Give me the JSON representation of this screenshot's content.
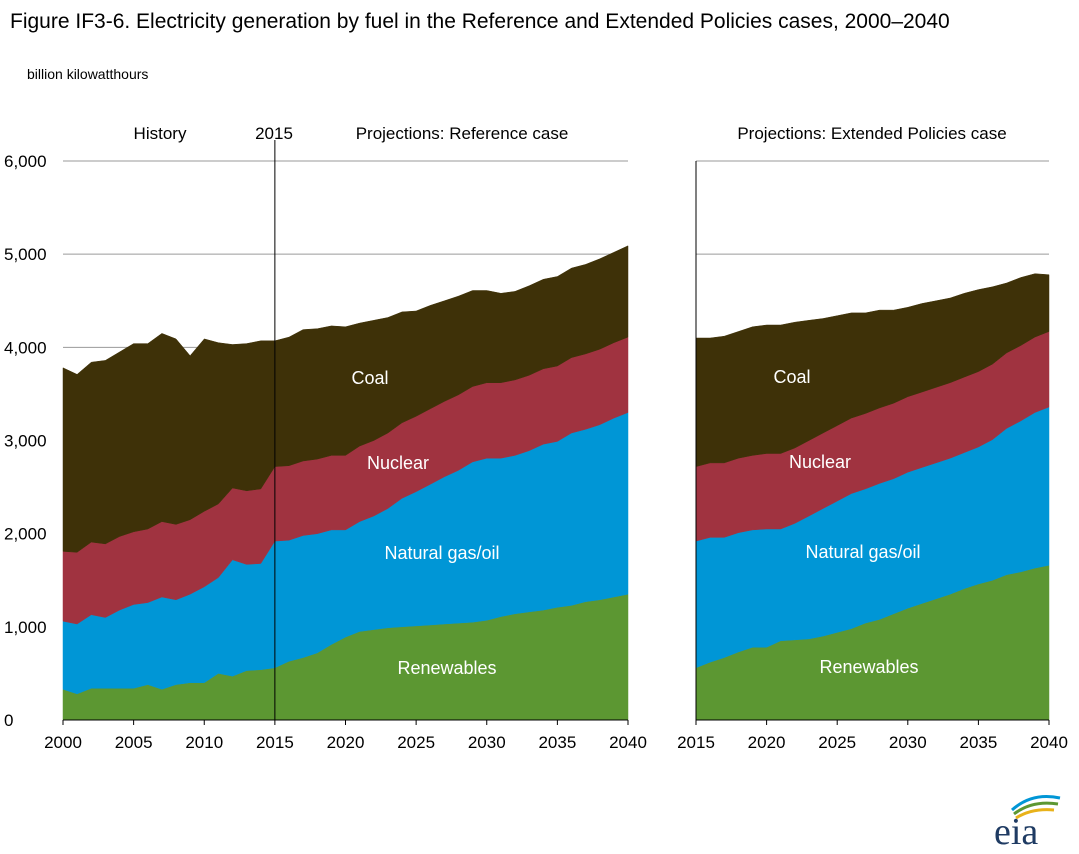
{
  "title": "Figure IF3-6. Electricity generation by fuel in the Reference and Extended Policies cases, 2000–2040",
  "unit": "billion kilowatthours",
  "logo_text": "eia",
  "colors": {
    "Renewables": "#5c9732",
    "Natural gas/oil": "#0096d6",
    "Nuclear": "#a03340",
    "Coal": "#3e3108"
  },
  "chart_data": [
    {
      "type": "area",
      "stacked": true,
      "panel": "left",
      "header_labels": [
        "History",
        "2015",
        "Projections: Reference case"
      ],
      "ylim": [
        0,
        6000
      ],
      "yticks": [
        0,
        1000,
        2000,
        3000,
        4000,
        5000,
        6000
      ],
      "ytick_labels": [
        "0",
        "1,000",
        "2,000",
        "3,000",
        "4,000",
        "5,000",
        "6,000"
      ],
      "xlim": [
        2000,
        2040
      ],
      "xticks": [
        2000,
        2005,
        2010,
        2015,
        2020,
        2025,
        2030,
        2035,
        2040
      ],
      "divider_year": 2015,
      "grid": true,
      "x": [
        2000,
        2001,
        2002,
        2003,
        2004,
        2005,
        2006,
        2007,
        2008,
        2009,
        2010,
        2011,
        2012,
        2013,
        2014,
        2015,
        2016,
        2017,
        2018,
        2019,
        2020,
        2021,
        2022,
        2023,
        2024,
        2025,
        2026,
        2027,
        2028,
        2029,
        2030,
        2031,
        2032,
        2033,
        2034,
        2035,
        2036,
        2037,
        2038,
        2039,
        2040
      ],
      "series": [
        {
          "name": "Renewables",
          "values": [
            330,
            280,
            340,
            340,
            340,
            340,
            380,
            330,
            380,
            400,
            400,
            500,
            470,
            530,
            540,
            560,
            630,
            670,
            720,
            810,
            890,
            950,
            970,
            990,
            1000,
            1010,
            1020,
            1030,
            1040,
            1050,
            1070,
            1110,
            1140,
            1160,
            1180,
            1210,
            1230,
            1270,
            1290,
            1320,
            1350
          ]
        },
        {
          "name": "Natural gas/oil",
          "values": [
            730,
            750,
            790,
            760,
            840,
            900,
            880,
            990,
            910,
            950,
            1030,
            1030,
            1250,
            1140,
            1140,
            1360,
            1300,
            1310,
            1280,
            1230,
            1150,
            1180,
            1220,
            1280,
            1380,
            1440,
            1510,
            1580,
            1640,
            1720,
            1740,
            1700,
            1700,
            1730,
            1780,
            1780,
            1850,
            1850,
            1880,
            1920,
            1950
          ]
        },
        {
          "name": "Nuclear",
          "values": [
            750,
            770,
            780,
            790,
            790,
            780,
            790,
            810,
            810,
            800,
            810,
            790,
            770,
            790,
            800,
            800,
            800,
            800,
            800,
            800,
            800,
            810,
            810,
            810,
            810,
            810,
            810,
            810,
            810,
            810,
            810,
            810,
            810,
            810,
            810,
            810,
            810,
            810,
            810,
            810,
            810
          ]
        },
        {
          "name": "Coal",
          "values": [
            1970,
            1910,
            1930,
            1970,
            1980,
            2020,
            1990,
            2020,
            1990,
            1760,
            1850,
            1730,
            1540,
            1580,
            1590,
            1350,
            1380,
            1410,
            1400,
            1390,
            1380,
            1320,
            1290,
            1240,
            1190,
            1130,
            1110,
            1080,
            1060,
            1030,
            990,
            960,
            950,
            960,
            960,
            960,
            960,
            960,
            970,
            970,
            980
          ]
        }
      ],
      "annotations": [
        "Coal",
        "Nuclear",
        "Natural gas/oil",
        "Renewables"
      ]
    },
    {
      "type": "area",
      "stacked": true,
      "panel": "right",
      "header_labels": [
        "Projections: Extended Policies case"
      ],
      "ylim": [
        0,
        6000
      ],
      "xlim": [
        2015,
        2040
      ],
      "xticks": [
        2015,
        2020,
        2025,
        2030,
        2035,
        2040
      ],
      "grid": true,
      "x": [
        2015,
        2016,
        2017,
        2018,
        2019,
        2020,
        2021,
        2022,
        2023,
        2024,
        2025,
        2026,
        2027,
        2028,
        2029,
        2030,
        2031,
        2032,
        2033,
        2034,
        2035,
        2036,
        2037,
        2038,
        2039,
        2040
      ],
      "series": [
        {
          "name": "Renewables",
          "values": [
            560,
            620,
            670,
            730,
            780,
            780,
            850,
            860,
            870,
            900,
            940,
            980,
            1040,
            1080,
            1140,
            1200,
            1250,
            1300,
            1350,
            1410,
            1460,
            1500,
            1560,
            1590,
            1630,
            1660
          ]
        },
        {
          "name": "Natural gas/oil",
          "values": [
            1360,
            1340,
            1290,
            1280,
            1260,
            1270,
            1200,
            1250,
            1320,
            1370,
            1410,
            1450,
            1440,
            1460,
            1450,
            1460,
            1460,
            1460,
            1460,
            1460,
            1470,
            1510,
            1570,
            1620,
            1670,
            1700
          ]
        },
        {
          "name": "Nuclear",
          "values": [
            800,
            800,
            800,
            800,
            800,
            810,
            810,
            810,
            810,
            810,
            810,
            810,
            810,
            810,
            810,
            810,
            810,
            810,
            810,
            810,
            810,
            810,
            810,
            810,
            810,
            810
          ]
        },
        {
          "name": "Coal",
          "values": [
            1380,
            1340,
            1360,
            1360,
            1380,
            1380,
            1380,
            1350,
            1290,
            1230,
            1180,
            1130,
            1080,
            1050,
            1000,
            960,
            950,
            930,
            910,
            900,
            880,
            830,
            750,
            730,
            680,
            610
          ]
        }
      ],
      "annotations": [
        "Coal",
        "Nuclear",
        "Natural gas/oil",
        "Renewables"
      ]
    }
  ]
}
